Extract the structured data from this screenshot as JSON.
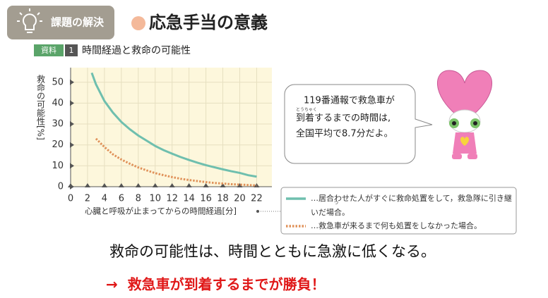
{
  "badge": "課題の解決",
  "heading": "応急手当の意義",
  "chart_data": {
    "type": "line",
    "source_label": "資料",
    "source_number": "1",
    "title": "時間経過と救命の可能性",
    "x_label": "心臓と呼吸が止まってからの時間経過[分]",
    "y_label": "救命の可能性[%]",
    "xlim": [
      0,
      23.8
    ],
    "ylim": [
      0,
      57
    ],
    "xticks": [
      0,
      2,
      4,
      6,
      8,
      10,
      12,
      14,
      16,
      18,
      20,
      22
    ],
    "yticks": [
      0,
      10,
      20,
      30,
      40,
      50
    ],
    "grid": true,
    "series": [
      {
        "name": "…居合わせた人がすぐに救命処置をして，救急隊に引き継いだ場合。",
        "name_ruby": "つ",
        "color": "#6fbfae",
        "style": "solid",
        "x": [
          2.5,
          3,
          4,
          5,
          6,
          7,
          8,
          9,
          10,
          11,
          12,
          13,
          14,
          15,
          16,
          17,
          18,
          19,
          20,
          21,
          22
        ],
        "values": [
          54.5,
          49,
          41,
          35.5,
          31,
          27.5,
          24.5,
          22,
          19.5,
          17.5,
          15.8,
          14.2,
          12.8,
          11.5,
          10.3,
          9.3,
          8.3,
          7.4,
          6.6,
          5.5,
          4.8
        ]
      },
      {
        "name": "…救急車が来るまで何も処置をしなかった場合。",
        "color": "#e0925a",
        "style": "dotted",
        "x": [
          3,
          4,
          5,
          6,
          7,
          8,
          9,
          10,
          11,
          12,
          13,
          14,
          15,
          16,
          17,
          18,
          19,
          20,
          21,
          22
        ],
        "values": [
          23,
          19,
          15.5,
          13,
          11,
          9.2,
          7.8,
          6.5,
          5.5,
          4.6,
          3.8,
          3.2,
          2.7,
          2.2,
          1.8,
          1.5,
          1.2,
          1.0,
          0.8,
          0.6
        ]
      }
    ]
  },
  "bubble": {
    "lines": [
      "119番通報で救急車が",
      "到着するまでの時間は,",
      "全国平均で8.7分だよ。"
    ],
    "ruby": "とうちゃく"
  },
  "conclusion": "救命の可能性は、時間とともに急激に低くなる。",
  "punchline": "→  救急車が到着するまでが勝負！"
}
